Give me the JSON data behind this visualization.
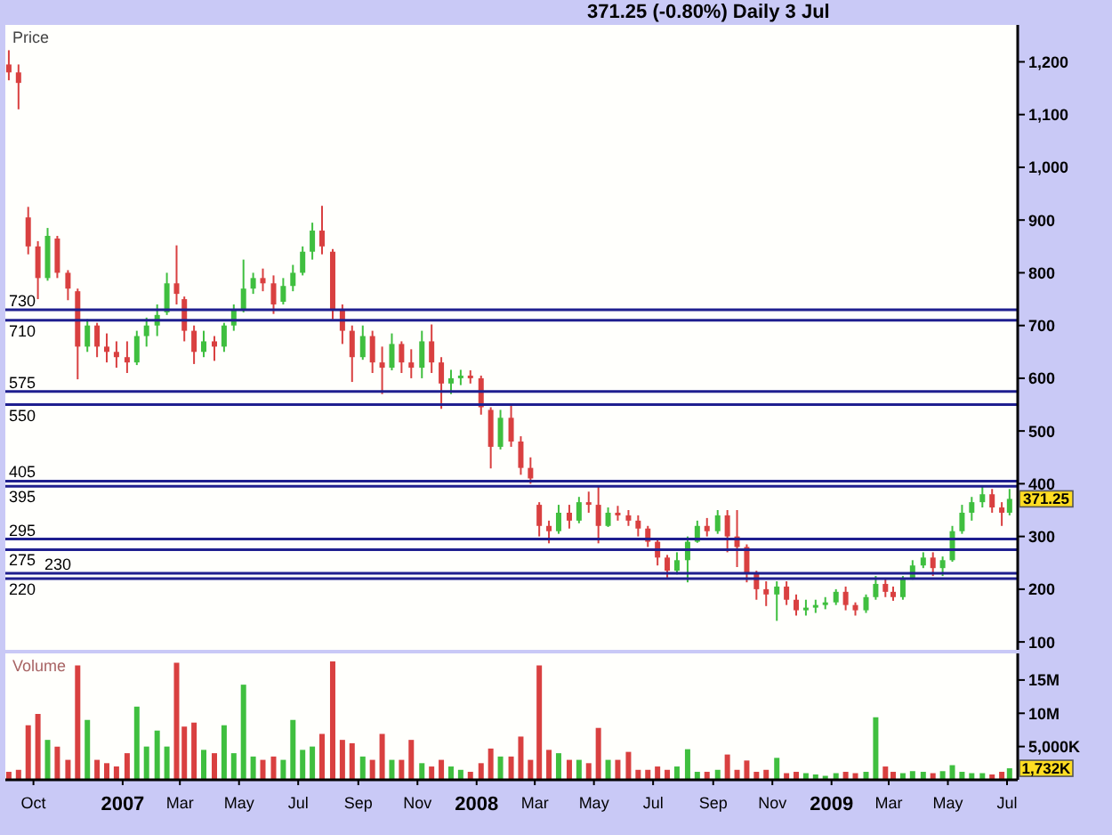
{
  "chart_data": [
    {
      "type": "candlestick",
      "title": "371.25 (-0.80%) Daily 3 Jul",
      "ylabel": "Price",
      "x": [
        "2006-09-05",
        "2006-09-15",
        "2006-09-25",
        "2006-10-05",
        "2006-10-15",
        "2006-10-25",
        "2006-11-05",
        "2006-11-15",
        "2006-11-25",
        "2006-12-05",
        "2006-12-15",
        "2006-12-25",
        "2007-01-05",
        "2007-01-15",
        "2007-01-25",
        "2007-02-05",
        "2007-02-15",
        "2007-02-25",
        "2007-03-05",
        "2007-03-15",
        "2007-03-25",
        "2007-04-05",
        "2007-04-15",
        "2007-04-25",
        "2007-05-05",
        "2007-05-15",
        "2007-05-25",
        "2007-06-05",
        "2007-06-15",
        "2007-06-25",
        "2007-07-05",
        "2007-07-15",
        "2007-07-25",
        "2007-08-05",
        "2007-08-15",
        "2007-08-25",
        "2007-09-05",
        "2007-09-15",
        "2007-09-25",
        "2007-10-05",
        "2007-10-15",
        "2007-10-25",
        "2007-11-05",
        "2007-11-15",
        "2007-11-25",
        "2007-12-05",
        "2007-12-15",
        "2007-12-25",
        "2008-01-05",
        "2008-01-15",
        "2008-01-25",
        "2008-02-05",
        "2008-02-15",
        "2008-02-25",
        "2008-03-05",
        "2008-03-15",
        "2008-03-25",
        "2008-04-05",
        "2008-04-15",
        "2008-04-25",
        "2008-05-05",
        "2008-05-15",
        "2008-05-25",
        "2008-06-05",
        "2008-06-15",
        "2008-06-25",
        "2008-07-05",
        "2008-07-15",
        "2008-07-25",
        "2008-08-05",
        "2008-08-15",
        "2008-08-25",
        "2008-09-05",
        "2008-09-15",
        "2008-09-25",
        "2008-10-05",
        "2008-10-15",
        "2008-10-25",
        "2008-11-05",
        "2008-11-15",
        "2008-11-25",
        "2008-12-05",
        "2008-12-15",
        "2008-12-25",
        "2009-01-05",
        "2009-01-15",
        "2009-01-25",
        "2009-02-05",
        "2009-02-15",
        "2009-02-25",
        "2009-03-05",
        "2009-03-15",
        "2009-03-25",
        "2009-04-05",
        "2009-04-15",
        "2009-04-25",
        "2009-05-05",
        "2009-05-15",
        "2009-05-25",
        "2009-06-05",
        "2009-06-15",
        "2009-06-25",
        "2009-07-03"
      ],
      "ohlc": [
        [
          1195,
          1222,
          1165,
          1180
        ],
        [
          1180,
          1195,
          1110,
          1160
        ],
        [
          905,
          925,
          835,
          850
        ],
        [
          850,
          860,
          750,
          790
        ],
        [
          790,
          885,
          785,
          870
        ],
        [
          865,
          870,
          790,
          800
        ],
        [
          800,
          805,
          748,
          770
        ],
        [
          765,
          770,
          598,
          660
        ],
        [
          660,
          712,
          650,
          700
        ],
        [
          700,
          705,
          640,
          660
        ],
        [
          660,
          685,
          630,
          650
        ],
        [
          650,
          670,
          620,
          640
        ],
        [
          640,
          670,
          610,
          630
        ],
        [
          630,
          690,
          625,
          680
        ],
        [
          680,
          715,
          660,
          700
        ],
        [
          700,
          740,
          680,
          720
        ],
        [
          725,
          800,
          720,
          780
        ],
        [
          780,
          852,
          740,
          760
        ],
        [
          750,
          755,
          670,
          690
        ],
        [
          690,
          700,
          627,
          650
        ],
        [
          650,
          690,
          640,
          670
        ],
        [
          670,
          680,
          633,
          660
        ],
        [
          660,
          705,
          650,
          700
        ],
        [
          700,
          740,
          690,
          730
        ],
        [
          730,
          825,
          725,
          770
        ],
        [
          770,
          800,
          760,
          790
        ],
        [
          790,
          808,
          765,
          780
        ],
        [
          780,
          795,
          722,
          740
        ],
        [
          745,
          790,
          740,
          775
        ],
        [
          775,
          815,
          765,
          800
        ],
        [
          800,
          850,
          795,
          840
        ],
        [
          840,
          895,
          825,
          880
        ],
        [
          880,
          927,
          835,
          850
        ],
        [
          840,
          845,
          712,
          730
        ],
        [
          730,
          740,
          665,
          690
        ],
        [
          690,
          700,
          593,
          640
        ],
        [
          640,
          700,
          635,
          680
        ],
        [
          680,
          690,
          610,
          630
        ],
        [
          630,
          660,
          570,
          620
        ],
        [
          620,
          685,
          615,
          665
        ],
        [
          665,
          670,
          610,
          630
        ],
        [
          630,
          655,
          600,
          620
        ],
        [
          620,
          690,
          600,
          670
        ],
        [
          670,
          702,
          610,
          630
        ],
        [
          630,
          640,
          542,
          590
        ],
        [
          590,
          616,
          570,
          600
        ],
        [
          600,
          616,
          587,
          605
        ],
        [
          605,
          615,
          590,
          600
        ],
        [
          600,
          605,
          531,
          545
        ],
        [
          540,
          545,
          429,
          470
        ],
        [
          470,
          540,
          465,
          525
        ],
        [
          525,
          550,
          470,
          480
        ],
        [
          480,
          490,
          417,
          430
        ],
        [
          430,
          450,
          400,
          410
        ],
        [
          360,
          365,
          300,
          320
        ],
        [
          320,
          330,
          287,
          310
        ],
        [
          310,
          360,
          305,
          345
        ],
        [
          345,
          360,
          315,
          330
        ],
        [
          330,
          375,
          325,
          365
        ],
        [
          365,
          385,
          345,
          360
        ],
        [
          360,
          395,
          287,
          320
        ],
        [
          320,
          355,
          318,
          345
        ],
        [
          345,
          358,
          330,
          340
        ],
        [
          340,
          350,
          320,
          330
        ],
        [
          330,
          340,
          300,
          315
        ],
        [
          315,
          320,
          280,
          290
        ],
        [
          290,
          295,
          245,
          260
        ],
        [
          260,
          265,
          222,
          235
        ],
        [
          235,
          270,
          228,
          255
        ],
        [
          255,
          300,
          213,
          290
        ],
        [
          290,
          330,
          288,
          320
        ],
        [
          320,
          335,
          300,
          310
        ],
        [
          310,
          350,
          305,
          340
        ],
        [
          340,
          350,
          270,
          300
        ],
        [
          300,
          350,
          242,
          280
        ],
        [
          280,
          285,
          213,
          230
        ],
        [
          230,
          235,
          180,
          200
        ],
        [
          200,
          215,
          168,
          190
        ],
        [
          190,
          215,
          140,
          205
        ],
        [
          205,
          215,
          170,
          180
        ],
        [
          180,
          190,
          150,
          160
        ],
        [
          160,
          180,
          150,
          165
        ],
        [
          165,
          180,
          155,
          170
        ],
        [
          170,
          185,
          162,
          175
        ],
        [
          175,
          200,
          170,
          195
        ],
        [
          195,
          205,
          160,
          170
        ],
        [
          170,
          175,
          150,
          160
        ],
        [
          160,
          190,
          155,
          185
        ],
        [
          185,
          225,
          180,
          210
        ],
        [
          210,
          220,
          185,
          195
        ],
        [
          195,
          205,
          178,
          185
        ],
        [
          185,
          225,
          180,
          220
        ],
        [
          220,
          255,
          218,
          245
        ],
        [
          245,
          270,
          240,
          260
        ],
        [
          260,
          270,
          225,
          240
        ],
        [
          240,
          262,
          225,
          255
        ],
        [
          255,
          320,
          252,
          310
        ],
        [
          310,
          360,
          305,
          345
        ],
        [
          345,
          375,
          330,
          365
        ],
        [
          365,
          395,
          355,
          380
        ],
        [
          380,
          390,
          345,
          355
        ],
        [
          355,
          365,
          320,
          345
        ],
        [
          345,
          390,
          340,
          371.25
        ]
      ],
      "colors": [
        "#d94040",
        "#d94040",
        "#d94040",
        "#d94040",
        "#3fbf3f",
        "#d94040",
        "#d94040",
        "#d94040",
        "#3fbf3f",
        "#d94040",
        "#d94040",
        "#d94040",
        "#d94040",
        "#3fbf3f",
        "#3fbf3f",
        "#3fbf3f",
        "#3fbf3f",
        "#d94040",
        "#d94040",
        "#d94040",
        "#3fbf3f",
        "#d94040",
        "#3fbf3f",
        "#3fbf3f",
        "#3fbf3f",
        "#3fbf3f",
        "#d94040",
        "#d94040",
        "#3fbf3f",
        "#3fbf3f",
        "#3fbf3f",
        "#3fbf3f",
        "#d94040",
        "#d94040",
        "#d94040",
        "#d94040",
        "#3fbf3f",
        "#d94040",
        "#d94040",
        "#3fbf3f",
        "#d94040",
        "#d94040",
        "#3fbf3f",
        "#d94040",
        "#d94040",
        "#3fbf3f",
        "#3fbf3f",
        "#d94040",
        "#d94040",
        "#d94040",
        "#3fbf3f",
        "#d94040",
        "#d94040",
        "#d94040",
        "#d94040",
        "#d94040",
        "#3fbf3f",
        "#d94040",
        "#3fbf3f",
        "#d94040",
        "#d94040",
        "#3fbf3f",
        "#d94040",
        "#d94040",
        "#d94040",
        "#d94040",
        "#d94040",
        "#d94040",
        "#3fbf3f",
        "#3fbf3f",
        "#3fbf3f",
        "#d94040",
        "#3fbf3f",
        "#d94040",
        "#d94040",
        "#d94040",
        "#d94040",
        "#d94040",
        "#3fbf3f",
        "#d94040",
        "#d94040",
        "#3fbf3f",
        "#3fbf3f",
        "#3fbf3f",
        "#3fbf3f",
        "#d94040",
        "#d94040",
        "#3fbf3f",
        "#3fbf3f",
        "#d94040",
        "#d94040",
        "#3fbf3f",
        "#3fbf3f",
        "#3fbf3f",
        "#d94040",
        "#3fbf3f",
        "#3fbf3f",
        "#3fbf3f",
        "#3fbf3f",
        "#3fbf3f",
        "#d94040",
        "#d94040",
        "#3fbf3f"
      ],
      "xlim": [
        "2006-09-02",
        "2009-07-12"
      ],
      "ylim": [
        85,
        1270
      ],
      "yticks": [
        100,
        200,
        300,
        400,
        500,
        600,
        700,
        800,
        900,
        {
          "value": 1000,
          "label": "1,000"
        },
        {
          "value": 1100,
          "label": "1,100"
        },
        {
          "value": 1200,
          "label": "1,200"
        }
      ],
      "tick_labels": "y",
      "ref_lines": [
        {
          "axis": "y",
          "value": 730,
          "label": "730",
          "color": "#1f1f8f"
        },
        {
          "axis": "y",
          "value": 710,
          "label": "710",
          "color": "#1f1f8f"
        },
        {
          "axis": "y",
          "value": 575,
          "label": "575",
          "color": "#1f1f8f"
        },
        {
          "axis": "y",
          "value": 550,
          "label": "550",
          "color": "#1f1f8f"
        },
        {
          "axis": "y",
          "value": 405,
          "label": "405",
          "color": "#1f1f8f"
        },
        {
          "axis": "y",
          "value": 395,
          "label": "395",
          "color": "#1f1f8f"
        },
        {
          "axis": "y",
          "value": 295,
          "label": "295",
          "color": "#1f1f8f"
        },
        {
          "axis": "y",
          "value": 275,
          "label": "275",
          "color": "#1f1f8f"
        },
        {
          "axis": "y",
          "value": 230,
          "label": "230",
          "color": "#1f1f8f"
        },
        {
          "axis": "y",
          "value": 220,
          "label": "220",
          "color": "#1f1f8f"
        }
      ],
      "annotations": [
        {
          "text": "371.25",
          "x": "2009-07-03",
          "y": 371.25
        }
      ]
    },
    {
      "type": "bar",
      "ylabel": "Volume",
      "x": [
        "2006-09-05",
        "2006-09-15",
        "2006-09-25",
        "2006-10-05",
        "2006-10-15",
        "2006-10-25",
        "2006-11-05",
        "2006-11-15",
        "2006-11-25",
        "2006-12-05",
        "2006-12-15",
        "2006-12-25",
        "2007-01-05",
        "2007-01-15",
        "2007-01-25",
        "2007-02-05",
        "2007-02-15",
        "2007-02-25",
        "2007-03-05",
        "2007-03-15",
        "2007-03-25",
        "2007-04-05",
        "2007-04-15",
        "2007-04-25",
        "2007-05-05",
        "2007-05-15",
        "2007-05-25",
        "2007-06-05",
        "2007-06-15",
        "2007-06-25",
        "2007-07-05",
        "2007-07-15",
        "2007-07-25",
        "2007-08-05",
        "2007-08-15",
        "2007-08-25",
        "2007-09-05",
        "2007-09-15",
        "2007-09-25",
        "2007-10-05",
        "2007-10-15",
        "2007-10-25",
        "2007-11-05",
        "2007-11-15",
        "2007-11-25",
        "2007-12-05",
        "2007-12-15",
        "2007-12-25",
        "2008-01-05",
        "2008-01-15",
        "2008-01-25",
        "2008-02-05",
        "2008-02-15",
        "2008-02-25",
        "2008-03-05",
        "2008-03-15",
        "2008-03-25",
        "2008-04-05",
        "2008-04-15",
        "2008-04-25",
        "2008-05-05",
        "2008-05-15",
        "2008-05-25",
        "2008-06-05",
        "2008-06-15",
        "2008-06-25",
        "2008-07-05",
        "2008-07-15",
        "2008-07-25",
        "2008-08-05",
        "2008-08-15",
        "2008-08-25",
        "2008-09-05",
        "2008-09-15",
        "2008-09-25",
        "2008-10-05",
        "2008-10-15",
        "2008-10-25",
        "2008-11-05",
        "2008-11-15",
        "2008-11-25",
        "2008-12-05",
        "2008-12-15",
        "2008-12-25",
        "2009-01-05",
        "2009-01-15",
        "2009-01-25",
        "2009-02-05",
        "2009-02-15",
        "2009-02-25",
        "2009-03-05",
        "2009-03-15",
        "2009-03-25",
        "2009-04-05",
        "2009-04-15",
        "2009-04-25",
        "2009-05-05",
        "2009-05-15",
        "2009-05-25",
        "2009-06-05",
        "2009-06-15",
        "2009-06-25",
        "2009-07-03"
      ],
      "values": [
        1200000,
        1500000,
        8200000,
        9900000,
        6000000,
        5000000,
        3000000,
        17200000,
        9000000,
        3000000,
        2500000,
        2000000,
        4000000,
        11000000,
        5000000,
        7400000,
        5000000,
        17600000,
        8000000,
        8600000,
        4500000,
        4000000,
        8200000,
        4000000,
        14300000,
        3500000,
        3000000,
        3500000,
        3000000,
        9000000,
        4500000,
        5000000,
        6900000,
        17800000,
        6000000,
        5500000,
        3500000,
        3000000,
        6900000,
        3000000,
        3000000,
        6000000,
        2500000,
        2000000,
        3000000,
        2000000,
        1500000,
        1200000,
        2500000,
        4700000,
        3500000,
        3500000,
        6500000,
        3000000,
        17200000,
        4500000,
        4000000,
        3000000,
        3000000,
        2500000,
        7800000,
        3000000,
        3000000,
        4200000,
        1500000,
        1500000,
        2000000,
        1500000,
        2000000,
        4600000,
        1200000,
        1200000,
        1500000,
        3800000,
        1500000,
        2900000,
        1200000,
        1500000,
        3300000,
        1000000,
        1200000,
        1000000,
        800000,
        600000,
        1000000,
        1200000,
        1000000,
        1200000,
        9400000,
        2000000,
        1200000,
        1000000,
        1300000,
        1200000,
        1000000,
        1300000,
        2200000,
        1200000,
        1000000,
        1000000,
        800000,
        1200000,
        1732000
      ],
      "colors": [
        "#d94040",
        "#d94040",
        "#d94040",
        "#d94040",
        "#3fbf3f",
        "#d94040",
        "#d94040",
        "#d94040",
        "#3fbf3f",
        "#d94040",
        "#d94040",
        "#d94040",
        "#d94040",
        "#3fbf3f",
        "#3fbf3f",
        "#3fbf3f",
        "#3fbf3f",
        "#d94040",
        "#d94040",
        "#d94040",
        "#3fbf3f",
        "#d94040",
        "#3fbf3f",
        "#3fbf3f",
        "#3fbf3f",
        "#3fbf3f",
        "#d94040",
        "#d94040",
        "#3fbf3f",
        "#3fbf3f",
        "#3fbf3f",
        "#3fbf3f",
        "#d94040",
        "#d94040",
        "#d94040",
        "#d94040",
        "#3fbf3f",
        "#d94040",
        "#d94040",
        "#3fbf3f",
        "#d94040",
        "#d94040",
        "#3fbf3f",
        "#d94040",
        "#d94040",
        "#3fbf3f",
        "#3fbf3f",
        "#d94040",
        "#d94040",
        "#d94040",
        "#3fbf3f",
        "#d94040",
        "#d94040",
        "#d94040",
        "#d94040",
        "#d94040",
        "#3fbf3f",
        "#d94040",
        "#3fbf3f",
        "#d94040",
        "#d94040",
        "#3fbf3f",
        "#d94040",
        "#d94040",
        "#d94040",
        "#d94040",
        "#d94040",
        "#d94040",
        "#3fbf3f",
        "#3fbf3f",
        "#3fbf3f",
        "#d94040",
        "#3fbf3f",
        "#d94040",
        "#d94040",
        "#d94040",
        "#d94040",
        "#d94040",
        "#3fbf3f",
        "#d94040",
        "#d94040",
        "#3fbf3f",
        "#3fbf3f",
        "#3fbf3f",
        "#3fbf3f",
        "#d94040",
        "#d94040",
        "#3fbf3f",
        "#3fbf3f",
        "#d94040",
        "#d94040",
        "#3fbf3f",
        "#3fbf3f",
        "#3fbf3f",
        "#d94040",
        "#3fbf3f",
        "#3fbf3f",
        "#3fbf3f",
        "#3fbf3f",
        "#3fbf3f",
        "#d94040",
        "#d94040",
        "#3fbf3f"
      ],
      "xlim": [
        "2006-09-02",
        "2009-07-12"
      ],
      "xticks": [
        {
          "value": "2006-10-01",
          "label": "Oct"
        },
        {
          "value": "2007-01-01",
          "label": "2007"
        },
        {
          "value": "2007-03-01",
          "label": "Mar"
        },
        {
          "value": "2007-05-01",
          "label": "May"
        },
        {
          "value": "2007-07-01",
          "label": "Jul"
        },
        {
          "value": "2007-09-01",
          "label": "Sep"
        },
        {
          "value": "2007-11-01",
          "label": "Nov"
        },
        {
          "value": "2008-01-01",
          "label": "2008"
        },
        {
          "value": "2008-03-01",
          "label": "Mar"
        },
        {
          "value": "2008-05-01",
          "label": "May"
        },
        {
          "value": "2008-07-01",
          "label": "Jul"
        },
        {
          "value": "2008-09-01",
          "label": "Sep"
        },
        {
          "value": "2008-11-01",
          "label": "Nov"
        },
        {
          "value": "2009-01-01",
          "label": "2009"
        },
        {
          "value": "2009-03-01",
          "label": "Mar"
        },
        {
          "value": "2009-05-01",
          "label": "May"
        },
        {
          "value": "2009-07-01",
          "label": "Jul"
        }
      ],
      "ylim": [
        0,
        19000000
      ],
      "yticks": [
        {
          "value": 5000000,
          "label": "5,000K"
        },
        {
          "value": 10000000,
          "label": "10M"
        },
        {
          "value": 15000000,
          "label": "15M"
        }
      ],
      "annotations": [
        {
          "text": "1,732K",
          "x": "2009-07-03",
          "y": 1732000
        }
      ]
    }
  ]
}
